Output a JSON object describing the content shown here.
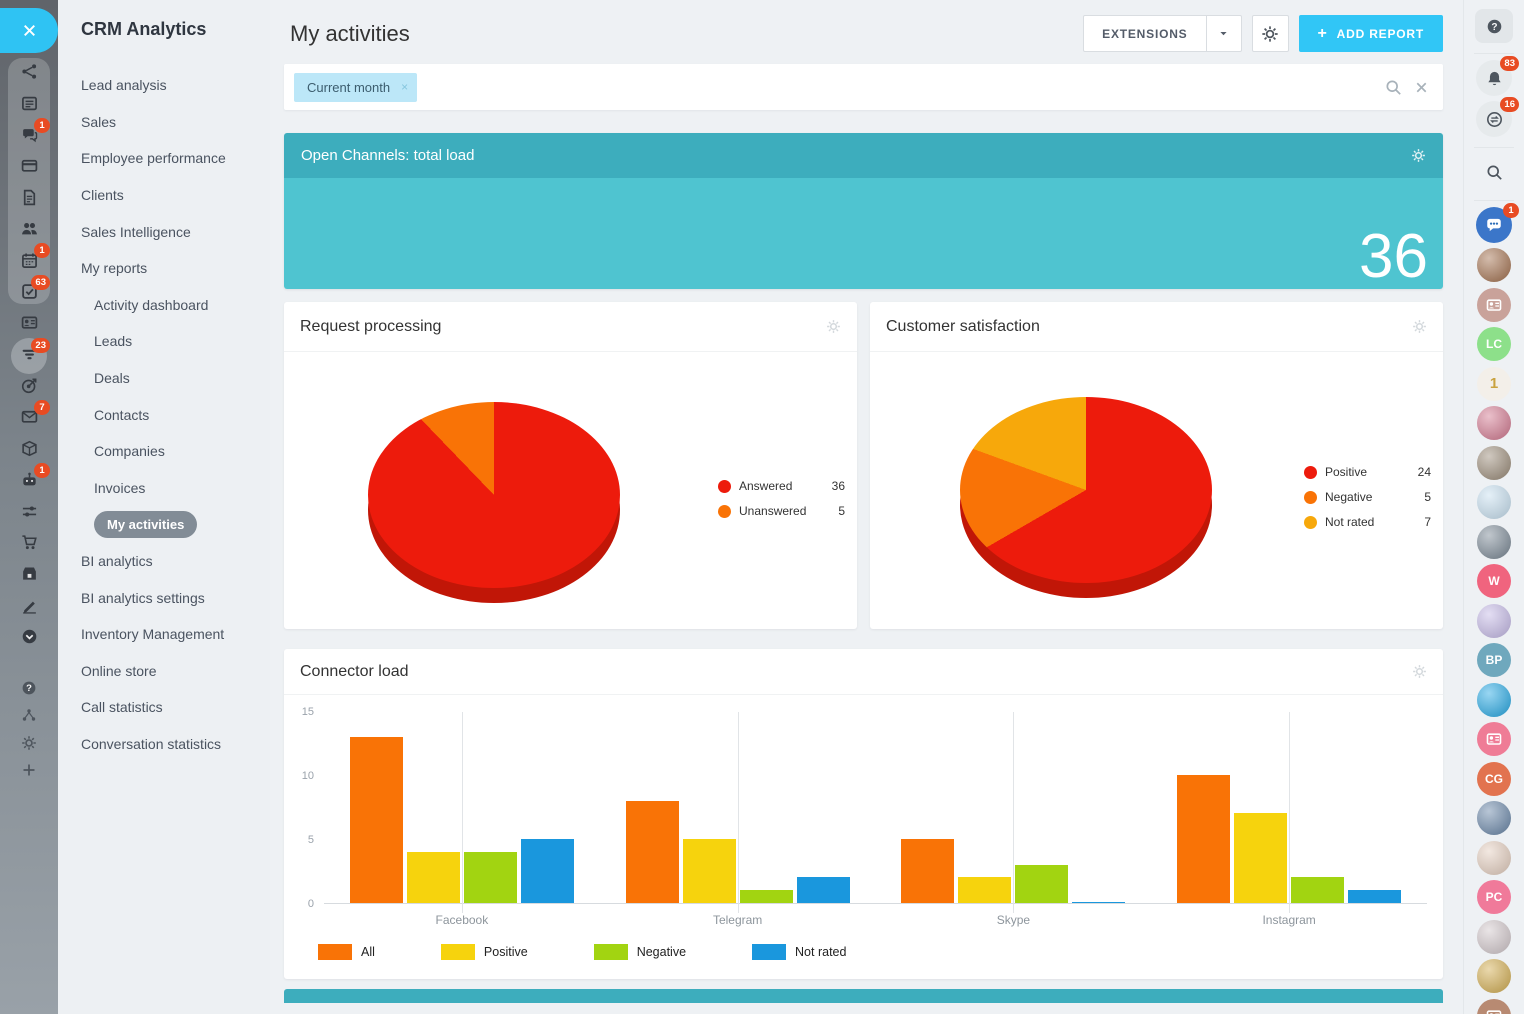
{
  "app": {
    "title": "CRM Analytics",
    "close_label": "close"
  },
  "left_rail": {
    "items": [
      {
        "name": "network",
        "icon": "share",
        "badge": null
      },
      {
        "name": "live-feed",
        "icon": "feed",
        "badge": null
      },
      {
        "name": "messenger",
        "icon": "chat",
        "badge": "1"
      },
      {
        "name": "payments",
        "icon": "card",
        "badge": null
      },
      {
        "name": "documents",
        "icon": "doc",
        "badge": null
      },
      {
        "name": "employees",
        "icon": "people",
        "badge": null
      },
      {
        "name": "calendar",
        "icon": "calendar",
        "badge": "1"
      },
      {
        "name": "tasks",
        "icon": "tasks",
        "badge": "63"
      },
      {
        "name": "contacts",
        "icon": "idcard",
        "badge": null
      },
      {
        "name": "crm",
        "icon": "funnel",
        "badge": "23"
      },
      {
        "name": "marketing",
        "icon": "target",
        "badge": null
      },
      {
        "name": "mail",
        "icon": "mail",
        "badge": "7"
      },
      {
        "name": "products",
        "icon": "box",
        "badge": null
      },
      {
        "name": "chatbots",
        "icon": "robot",
        "badge": "1"
      },
      {
        "name": "automation",
        "icon": "sliders",
        "badge": null
      },
      {
        "name": "sales-center",
        "icon": "cart",
        "badge": null
      },
      {
        "name": "online-store",
        "icon": "store",
        "badge": null
      },
      {
        "name": "sign",
        "icon": "pen",
        "badge": null
      },
      {
        "name": "time-management",
        "icon": "clockcheck",
        "badge": null
      }
    ],
    "bottom_items": [
      {
        "name": "help",
        "icon": "help",
        "badge": null
      },
      {
        "name": "structure",
        "icon": "nodes",
        "badge": null
      },
      {
        "name": "settings",
        "icon": "gear",
        "badge": null
      },
      {
        "name": "add",
        "icon": "plus",
        "badge": null
      }
    ]
  },
  "sidebar": {
    "title": "CRM Analytics",
    "items": [
      {
        "label": "Lead analysis",
        "indent": false,
        "selected": false
      },
      {
        "label": "Sales",
        "indent": false,
        "selected": false
      },
      {
        "label": "Employee performance",
        "indent": false,
        "selected": false
      },
      {
        "label": "Clients",
        "indent": false,
        "selected": false
      },
      {
        "label": "Sales Intelligence",
        "indent": false,
        "selected": false
      },
      {
        "label": "My reports",
        "indent": false,
        "selected": false
      },
      {
        "label": "Activity dashboard",
        "indent": true,
        "selected": false
      },
      {
        "label": "Leads",
        "indent": true,
        "selected": false
      },
      {
        "label": "Deals",
        "indent": true,
        "selected": false
      },
      {
        "label": "Contacts",
        "indent": true,
        "selected": false
      },
      {
        "label": "Companies",
        "indent": true,
        "selected": false
      },
      {
        "label": "Invoices",
        "indent": true,
        "selected": false
      },
      {
        "label": "My activities",
        "indent": true,
        "selected": true
      },
      {
        "label": "BI analytics",
        "indent": false,
        "selected": false
      },
      {
        "label": "BI analytics settings",
        "indent": false,
        "selected": false
      },
      {
        "label": "Inventory Management",
        "indent": false,
        "selected": false
      },
      {
        "label": "Online store",
        "indent": false,
        "selected": false
      },
      {
        "label": "Call statistics",
        "indent": false,
        "selected": false
      },
      {
        "label": "Conversation statistics",
        "indent": false,
        "selected": false
      }
    ]
  },
  "header": {
    "title": "My activities",
    "extensions_label": "EXTENSIONS",
    "add_report_label": "ADD REPORT",
    "add_report_plus": "+"
  },
  "filter": {
    "chip": "Current month",
    "chip_remove": "×"
  },
  "widgets": {
    "open_channels": {
      "title": "Open Channels: total load",
      "value": "36",
      "header_color": "#3dadbd",
      "body_color": "#4fc4d0"
    },
    "request_processing": {
      "title": "Request processing"
    },
    "customer_satisfaction": {
      "title": "Customer satisfaction"
    },
    "connector_load": {
      "title": "Connector load"
    }
  },
  "chart_data": [
    {
      "id": "request_processing",
      "type": "pie",
      "title": "Request processing",
      "style": "3d",
      "slices": [
        {
          "label": "Answered",
          "value": 36,
          "color": "#ed1b0c"
        },
        {
          "label": "Unanswered",
          "value": 5,
          "color": "#f97306"
        }
      ],
      "legend_position": "right"
    },
    {
      "id": "customer_satisfaction",
      "type": "pie",
      "title": "Customer satisfaction",
      "style": "3d",
      "slices": [
        {
          "label": "Positive",
          "value": 24,
          "color": "#ed1b0c"
        },
        {
          "label": "Negative",
          "value": 5,
          "color": "#f97306"
        },
        {
          "label": "Not rated",
          "value": 7,
          "color": "#f7a80b"
        }
      ],
      "legend_position": "right"
    },
    {
      "id": "connector_load",
      "type": "bar",
      "title": "Connector load",
      "categories": [
        "Facebook",
        "Telegram",
        "Skype",
        "Instagram"
      ],
      "series": [
        {
          "name": "All",
          "color": "#f97306",
          "values": [
            13,
            8,
            5,
            10
          ]
        },
        {
          "name": "Positive",
          "color": "#f6d30d",
          "values": [
            4,
            5,
            2,
            7
          ]
        },
        {
          "name": "Negative",
          "color": "#a2d411",
          "values": [
            4,
            1,
            3,
            2
          ]
        },
        {
          "name": "Not rated",
          "color": "#1a97dd",
          "values": [
            5,
            2,
            0,
            1
          ]
        }
      ],
      "ylim": [
        0,
        15
      ],
      "yticks": [
        0,
        5,
        10,
        15
      ],
      "grid": "category-separators",
      "legend_position": "bottom"
    }
  ],
  "right_rail": {
    "buttons": [
      {
        "name": "help",
        "icon": "help",
        "badge": null,
        "boxed": true
      },
      {
        "name": "notifications",
        "icon": "bell",
        "badge": "83",
        "boxed": false
      },
      {
        "name": "plan",
        "icon": "exchange",
        "badge": "16",
        "boxed": false
      },
      {
        "name": "search",
        "icon": "search",
        "badge": null,
        "boxed": false
      },
      {
        "name": "messenger",
        "icon": "chatpeople",
        "badge": "1",
        "boxed": false
      }
    ],
    "avatars": [
      {
        "name": "user-photo",
        "initials": "",
        "bg": "#b08568",
        "kind": "photo"
      },
      {
        "name": "user-card",
        "initials": "",
        "bg": "#c9a29a",
        "kind": "icon"
      },
      {
        "name": "user-lc",
        "initials": "LC",
        "bg": "#8de08a",
        "kind": "initials"
      },
      {
        "name": "user-birthday",
        "initials": "1",
        "bg": "#f3efe9",
        "kind": "illustration",
        "fg": "#c9a23f"
      },
      {
        "name": "user-photo",
        "initials": "",
        "bg": "#d98ca0",
        "kind": "photo"
      },
      {
        "name": "user-photo",
        "initials": "",
        "bg": "#a99c8c",
        "kind": "photo"
      },
      {
        "name": "user-illustration",
        "initials": "",
        "bg": "#cfe4f2",
        "kind": "photo"
      },
      {
        "name": "user-photo",
        "initials": "",
        "bg": "#8d99a4",
        "kind": "photo"
      },
      {
        "name": "user-w",
        "initials": "W",
        "bg": "#f0647e",
        "kind": "initials"
      },
      {
        "name": "user-illustration",
        "initials": "",
        "bg": "#cdc3ea",
        "kind": "photo"
      },
      {
        "name": "user-bp",
        "initials": "BP",
        "bg": "#6fa8bd",
        "kind": "initials"
      },
      {
        "name": "user-illustration",
        "initials": "",
        "bg": "#45b5e8",
        "kind": "photo"
      },
      {
        "name": "user-card",
        "initials": "",
        "bg": "#ef7c96",
        "kind": "icon"
      },
      {
        "name": "user-cg",
        "initials": "CG",
        "bg": "#e2734f",
        "kind": "initials"
      },
      {
        "name": "user-photo",
        "initials": "",
        "bg": "#7e97b4",
        "kind": "photo"
      },
      {
        "name": "user-photo",
        "initials": "",
        "bg": "#e8d5c8",
        "kind": "photo"
      },
      {
        "name": "user-pc",
        "initials": "PC",
        "bg": "#f07a9a",
        "kind": "initials"
      },
      {
        "name": "user-photo",
        "initials": "",
        "bg": "#d8cfd2",
        "kind": "photo"
      },
      {
        "name": "user-photo",
        "initials": "",
        "bg": "#d9b96a",
        "kind": "photo"
      },
      {
        "name": "user-card",
        "initials": "",
        "bg": "#b88a72",
        "kind": "icon"
      }
    ]
  }
}
